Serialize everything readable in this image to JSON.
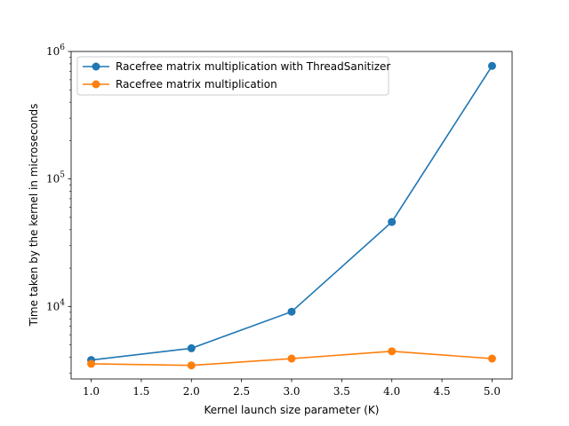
{
  "chart_data": {
    "type": "line",
    "title": "",
    "xlabel": "Kernel launch size parameter (K)",
    "ylabel": "Time taken by the kernel in microseconds",
    "xscale": "linear",
    "yscale": "log",
    "xlim": [
      0.8,
      5.2
    ],
    "ylim": [
      2700,
      1000000
    ],
    "x_ticks": [
      1.0,
      1.5,
      2.0,
      2.5,
      3.0,
      3.5,
      4.0,
      4.5,
      5.0
    ],
    "x_tick_labels": [
      "1.0",
      "1.5",
      "2.0",
      "2.5",
      "3.0",
      "3.5",
      "4.0",
      "4.5",
      "5.0"
    ],
    "y_ticks": [
      10000,
      100000,
      1000000
    ],
    "y_tick_labels": [
      "10^4",
      "10^5",
      "10^6"
    ],
    "grid": false,
    "legend_position": "upper-left",
    "x": [
      1,
      2,
      3,
      4,
      5
    ],
    "series": [
      {
        "name": "Racefree matrix multiplication with ThreadSanitizer",
        "color": "#1f77b4",
        "values": [
          3800,
          4700,
          9100,
          46000,
          770000
        ]
      },
      {
        "name": "Racefree matrix multiplication",
        "color": "#ff7f0e",
        "values": [
          3550,
          3450,
          3900,
          4450,
          3900
        ]
      }
    ]
  }
}
